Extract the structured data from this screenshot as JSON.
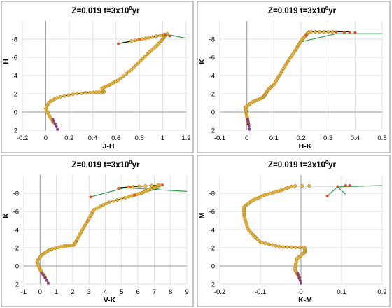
{
  "colors": {
    "track": "#111111",
    "points_ms": "#e8b33a",
    "points_pms": "#8e3a86",
    "points_agb": "#e0522a",
    "segment": "#2e9a48"
  },
  "chart_data": [
    {
      "type": "scatter",
      "title_main": "Z=0.019   t=3x10",
      "title_exp": "8",
      "title_unit": "yr",
      "xlabel": "J-H",
      "ylabel": "H",
      "xlim": [
        -0.2,
        1.2
      ],
      "ylim": [
        2,
        -10
      ],
      "xticks": [
        -0.2,
        0,
        0.2,
        0.4,
        0.6,
        0.8,
        1,
        1.2
      ],
      "xtick_labels": [
        "-0.2",
        "0",
        "0.2",
        "0.4",
        "0.6",
        "0.8",
        "1",
        "1.2"
      ],
      "yticks": [
        2,
        0,
        -2,
        -4,
        -6,
        -8
      ],
      "ytick_labels": [
        "2",
        "0",
        "-2",
        "-4",
        "-6",
        "-8"
      ],
      "grid": true,
      "track": [
        [
          0.1,
          1.9
        ],
        [
          0.07,
          1.2
        ],
        [
          0.03,
          0.4
        ],
        [
          0.0,
          -0.4
        ],
        [
          0.03,
          -1.1
        ],
        [
          0.1,
          -1.6
        ],
        [
          0.25,
          -2.0
        ],
        [
          0.4,
          -2.15
        ],
        [
          0.5,
          -2.2
        ],
        [
          0.48,
          -2.6
        ],
        [
          0.55,
          -3.0
        ],
        [
          0.62,
          -3.5
        ],
        [
          0.72,
          -4.5
        ],
        [
          0.8,
          -5.5
        ],
        [
          0.88,
          -6.5
        ],
        [
          0.95,
          -7.3
        ],
        [
          1.0,
          -8.0
        ],
        [
          1.02,
          -8.4
        ],
        [
          1.04,
          -8.6
        ],
        [
          0.9,
          -8.2
        ],
        [
          0.78,
          -7.9
        ],
        [
          0.65,
          -7.6
        ]
      ],
      "segments": [
        {
          "from": [
            0.62,
            -7.5
          ],
          "to": [
            1.04,
            -8.5
          ]
        },
        {
          "from": [
            1.04,
            -8.5
          ],
          "to": [
            1.2,
            -8.1
          ]
        }
      ],
      "pms_points": [
        [
          0.1,
          1.9
        ],
        [
          0.09,
          1.6
        ],
        [
          0.08,
          1.3
        ],
        [
          0.07,
          1.0
        ],
        [
          0.06,
          0.8
        ]
      ],
      "agb_points": [
        [
          0.62,
          -7.5
        ],
        [
          0.8,
          -7.95
        ],
        [
          1.02,
          -8.45
        ],
        [
          1.06,
          -8.35
        ]
      ],
      "ms_range": [
        0.05,
        0.97
      ]
    },
    {
      "type": "scatter",
      "title_main": "Z=0.019   t=3x10",
      "title_exp": "8",
      "title_unit": "yr",
      "xlabel": "H-K",
      "ylabel": "K",
      "xlim": [
        -0.1,
        0.5
      ],
      "ylim": [
        2,
        -10
      ],
      "xticks": [
        -0.1,
        0,
        0.1,
        0.2,
        0.3,
        0.4,
        0.5
      ],
      "xtick_labels": [
        "-0.1",
        "0",
        "0.1",
        "0.2",
        "0.3",
        "0.4",
        "0.5"
      ],
      "yticks": [
        2,
        0,
        -2,
        -4,
        -6,
        -8
      ],
      "ytick_labels": [
        "2",
        "0",
        "-2",
        "-4",
        "-6",
        "-8"
      ],
      "grid": true,
      "track": [
        [
          0.01,
          1.9
        ],
        [
          0.005,
          1.2
        ],
        [
          0.0,
          0.4
        ],
        [
          -0.005,
          -0.5
        ],
        [
          0.02,
          -1.1
        ],
        [
          0.06,
          -1.6
        ],
        [
          0.07,
          -2.0
        ],
        [
          0.08,
          -2.5
        ],
        [
          0.1,
          -3.0
        ],
        [
          0.12,
          -4.0
        ],
        [
          0.15,
          -5.5
        ],
        [
          0.18,
          -6.8
        ],
        [
          0.2,
          -7.8
        ],
        [
          0.22,
          -8.5
        ],
        [
          0.23,
          -8.8
        ],
        [
          0.32,
          -8.8
        ],
        [
          0.34,
          -8.8
        ],
        [
          0.38,
          -8.8
        ]
      ],
      "segments": [
        {
          "from": [
            0.2,
            -7.7
          ],
          "to": [
            0.33,
            -8.6
          ]
        },
        {
          "from": [
            0.33,
            -8.6
          ],
          "to": [
            0.5,
            -8.6
          ]
        }
      ],
      "pms_points": [
        [
          0.01,
          1.9
        ],
        [
          0.008,
          1.6
        ],
        [
          0.006,
          1.3
        ],
        [
          0.004,
          1.0
        ],
        [
          0.003,
          0.8
        ]
      ],
      "agb_points": [
        [
          0.22,
          -8.4
        ],
        [
          0.33,
          -8.8
        ],
        [
          0.36,
          -8.75
        ],
        [
          0.38,
          -8.75
        ],
        [
          0.4,
          -8.7
        ]
      ],
      "ms_range": [
        0.05,
        0.88
      ]
    },
    {
      "type": "scatter",
      "title_main": "Z=0.019   t=3x10",
      "title_exp": "8",
      "title_unit": "yr",
      "xlabel": "V-K",
      "ylabel": "K",
      "xlim": [
        -1,
        9
      ],
      "ylim": [
        2,
        -10
      ],
      "xticks": [
        -1,
        0,
        1,
        2,
        3,
        4,
        5,
        6,
        7,
        8,
        9
      ],
      "xtick_labels": [
        "-1",
        "0",
        "1",
        "2",
        "3",
        "4",
        "5",
        "6",
        "7",
        "8",
        "9"
      ],
      "yticks": [
        2,
        0,
        -2,
        -4,
        -6,
        -8
      ],
      "ytick_labels": [
        "2",
        "0",
        "-2",
        "-4",
        "-6",
        "-8"
      ],
      "grid": true,
      "track": [
        [
          0.5,
          1.9
        ],
        [
          0.3,
          1.2
        ],
        [
          0.0,
          0.4
        ],
        [
          -0.2,
          -0.5
        ],
        [
          0.1,
          -1.2
        ],
        [
          0.6,
          -1.8
        ],
        [
          1.5,
          -2.2
        ],
        [
          2.1,
          -2.3
        ],
        [
          2.3,
          -3.0
        ],
        [
          2.6,
          -4.0
        ],
        [
          3.0,
          -5.2
        ],
        [
          3.3,
          -6.2
        ],
        [
          4.2,
          -7.0
        ],
        [
          5.4,
          -7.6
        ],
        [
          6.2,
          -8.0
        ],
        [
          6.8,
          -8.5
        ],
        [
          7.4,
          -8.9
        ],
        [
          5.5,
          -8.7
        ],
        [
          4.8,
          -8.6
        ]
      ],
      "segments": [
        {
          "from": [
            3.1,
            -7.6
          ],
          "to": [
            5.2,
            -8.6
          ]
        },
        {
          "from": [
            5.2,
            -8.6
          ],
          "to": [
            9.0,
            -8.2
          ]
        },
        {
          "from": [
            5.8,
            -7.8
          ],
          "to": [
            7.4,
            -8.6
          ]
        }
      ],
      "pms_points": [
        [
          0.5,
          1.9
        ],
        [
          0.4,
          1.6
        ],
        [
          0.3,
          1.3
        ],
        [
          0.2,
          1.0
        ],
        [
          0.1,
          0.8
        ]
      ],
      "agb_points": [
        [
          3.1,
          -7.6
        ],
        [
          4.8,
          -8.55
        ],
        [
          5.5,
          -8.7
        ],
        [
          5.8,
          -7.8
        ],
        [
          7.5,
          -8.9
        ]
      ],
      "ms_range": [
        0.05,
        0.95
      ]
    },
    {
      "type": "scatter",
      "title_main": "Z=0.019   t=3x10",
      "title_exp": "8",
      "title_unit": "yr",
      "xlabel": "K-M",
      "ylabel": "M",
      "xlim": [
        -0.2,
        0.2
      ],
      "ylim": [
        2,
        -10
      ],
      "xticks": [
        -0.2,
        -0.1,
        0,
        0.1,
        0.2
      ],
      "xtick_labels": [
        "-0.2",
        "-0.1",
        "0",
        "0.1",
        "0.2"
      ],
      "yticks": [
        2,
        0,
        -2,
        -4,
        -6,
        -8
      ],
      "ytick_labels": [
        "2",
        "0",
        "-2",
        "-4",
        "-6",
        "-8"
      ],
      "grid": true,
      "track": [
        [
          0.0,
          1.9
        ],
        [
          -0.005,
          1.2
        ],
        [
          -0.015,
          0.4
        ],
        [
          -0.01,
          -0.8
        ],
        [
          0.01,
          -1.5
        ],
        [
          0.01,
          -2.0
        ],
        [
          -0.05,
          -2.1
        ],
        [
          -0.1,
          -2.6
        ],
        [
          -0.13,
          -4.0
        ],
        [
          -0.14,
          -5.5
        ],
        [
          -0.14,
          -6.5
        ],
        [
          -0.12,
          -7.2
        ],
        [
          -0.09,
          -7.8
        ],
        [
          -0.05,
          -8.3
        ],
        [
          -0.02,
          -8.8
        ],
        [
          0.08,
          -8.8
        ],
        [
          0.09,
          -8.8
        ]
      ],
      "segments": [
        {
          "from": [
            0.065,
            -7.7
          ],
          "to": [
            0.09,
            -8.7
          ]
        },
        {
          "from": [
            0.09,
            -8.7
          ],
          "to": [
            0.2,
            -8.85
          ]
        },
        {
          "from": [
            0.09,
            -8.7
          ],
          "to": [
            0.11,
            -7.9
          ]
        }
      ],
      "pms_points": [
        [
          0.0,
          1.9
        ],
        [
          -0.002,
          1.6
        ],
        [
          -0.004,
          1.3
        ],
        [
          -0.006,
          1.0
        ],
        [
          -0.008,
          0.8
        ]
      ],
      "agb_points": [
        [
          0.065,
          -7.7
        ],
        [
          0.09,
          -8.75
        ],
        [
          0.11,
          -8.85
        ],
        [
          0.12,
          -8.85
        ]
      ],
      "ms_range": [
        0.05,
        0.9
      ]
    }
  ]
}
